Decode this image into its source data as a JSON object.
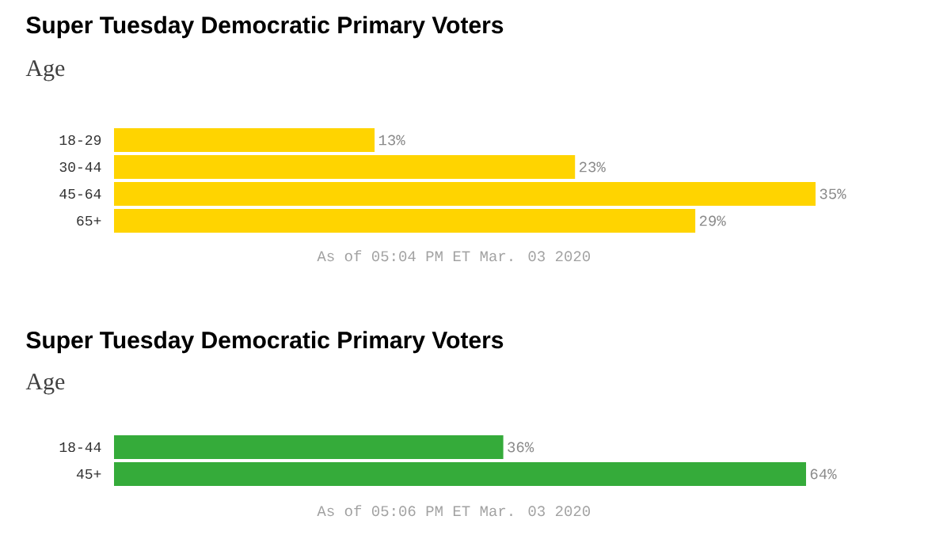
{
  "chart_data": [
    {
      "type": "bar",
      "orientation": "horizontal",
      "title": "Super Tuesday Democratic Primary Voters",
      "subtitle": "Age",
      "categories": [
        "18-29",
        "30-44",
        "45-64",
        "65+"
      ],
      "values": [
        13,
        23,
        35,
        29
      ],
      "value_labels": [
        "13%",
        "23%",
        "35%",
        "29%"
      ],
      "color": "#ffd400",
      "xlim": [
        0,
        35
      ],
      "tick_labels": "y",
      "annotations": [
        "As of 05:04 PM ET Mar. 03 2020"
      ]
    },
    {
      "type": "bar",
      "orientation": "horizontal",
      "title": "Super Tuesday Democratic Primary Voters",
      "subtitle": "Age",
      "categories": [
        "18-44",
        "45+"
      ],
      "values": [
        36,
        64
      ],
      "value_labels": [
        "36%",
        "64%"
      ],
      "color": "#35ab3a",
      "xlim": [
        0,
        64
      ],
      "tick_labels": "y",
      "annotations": [
        "As of 05:06 PM ET Mar. 03 2020"
      ]
    }
  ]
}
